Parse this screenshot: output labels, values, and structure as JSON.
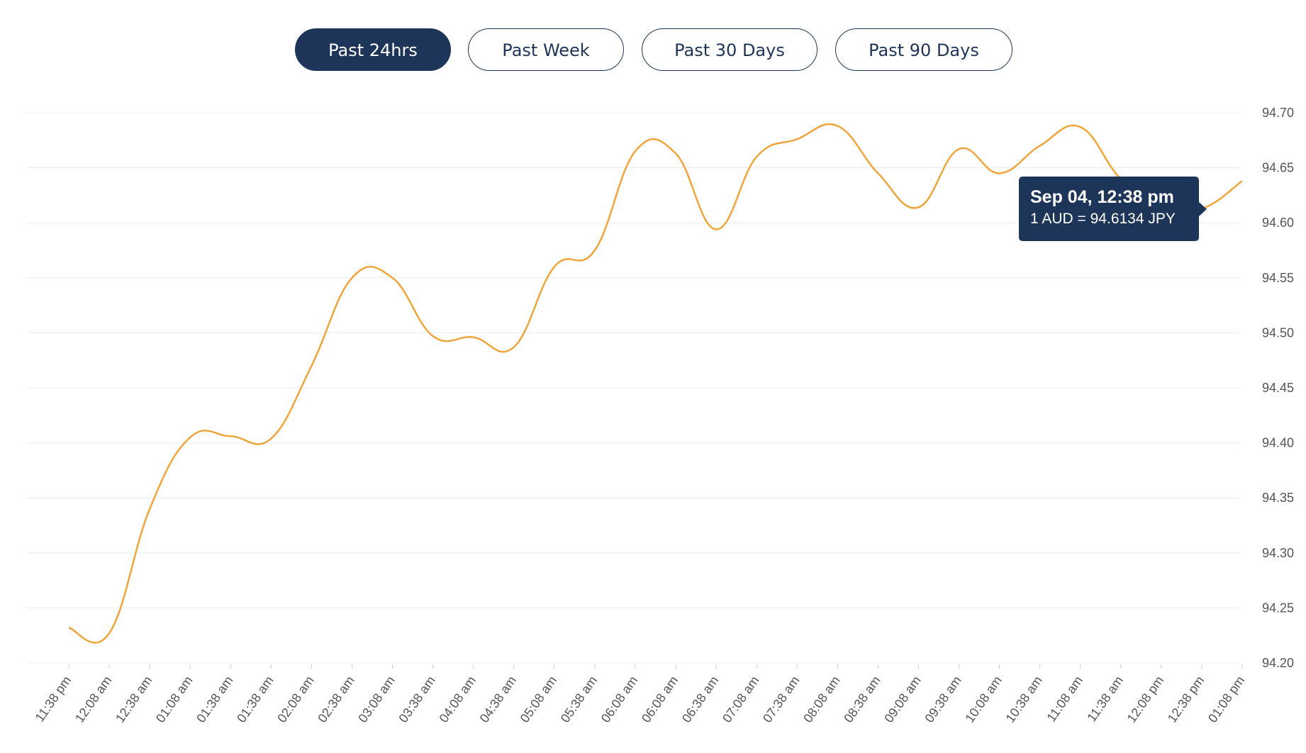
{
  "range_tabs": [
    {
      "label": "Past 24hrs",
      "active": true
    },
    {
      "label": "Past Week",
      "active": false
    },
    {
      "label": "Past 30 Days",
      "active": false
    },
    {
      "label": "Past 90 Days",
      "active": false
    }
  ],
  "tooltip": {
    "title": "Sep 04, 12:38 pm",
    "value": "1 AUD = 94.6134 JPY"
  },
  "colors": {
    "line": "#f0a53b",
    "accent": "#1e355a",
    "grid": "#ececec",
    "tick_text": "#555555"
  },
  "chart_data": {
    "type": "line",
    "title": "",
    "xlabel": "",
    "ylabel": "",
    "ylim": [
      94.2,
      94.7
    ],
    "y_ticks": [
      "94.70",
      "94.65",
      "94.60",
      "94.55",
      "94.50",
      "94.45",
      "94.40",
      "94.35",
      "94.30",
      "94.25",
      "94.20"
    ],
    "y_axis_position": "right",
    "grid": true,
    "legend": "none",
    "categories": [
      "11:38 pm",
      "12:08 am",
      "12:38 am",
      "01:08 am",
      "01:38 am",
      "01:38 am",
      "02:08 am",
      "02:38 am",
      "03:08 am",
      "03:38 am",
      "04:08 am",
      "04:38 am",
      "05:08 am",
      "05:38 am",
      "06:08 am",
      "06:08 am",
      "06:38 am",
      "07:08 am",
      "07:38 am",
      "08:08 am",
      "08:38 am",
      "09:08 am",
      "09:38 am",
      "10:08 am",
      "10:38 am",
      "11:08 am",
      "11:38 am",
      "12:08 pm",
      "12:38 pm",
      "01:08 pm"
    ],
    "series": [
      {
        "values": [
          94.232,
          94.227,
          94.34,
          94.405,
          94.406,
          94.404,
          94.47,
          94.55,
          94.55,
          94.497,
          94.496,
          94.487,
          94.56,
          94.575,
          94.665,
          94.663,
          94.594,
          94.66,
          94.676,
          94.688,
          94.645,
          94.614,
          94.667,
          94.645,
          94.67,
          94.687,
          94.64,
          94.618,
          94.613,
          94.638
        ]
      }
    ]
  }
}
